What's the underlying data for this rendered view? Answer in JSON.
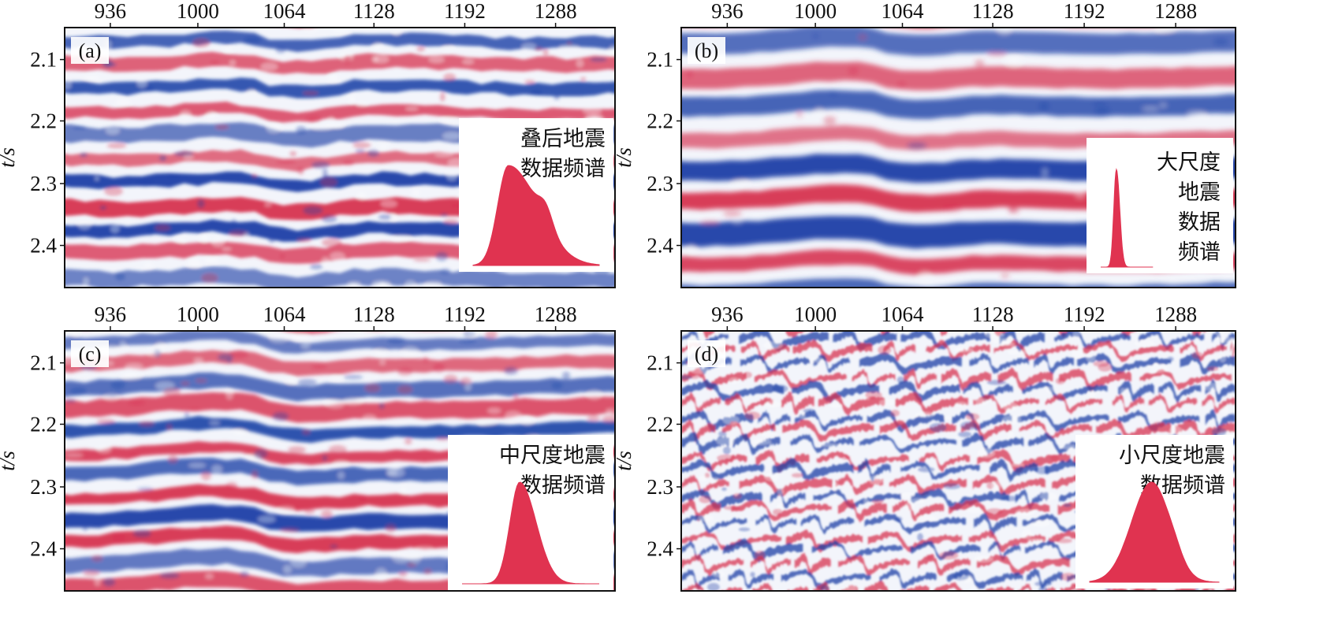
{
  "figure": {
    "x_tick_labels": [
      "936",
      "1000",
      "1064",
      "1128",
      "1192",
      "1288"
    ],
    "y_tick_labels": [
      "2.1",
      "2.2",
      "2.3",
      "2.4"
    ],
    "y_axis_title": "t/s",
    "colors": {
      "red": "#d7314f",
      "blue": "#1a3fa6",
      "white": "#ffffff",
      "spectrum": "#e03350"
    }
  },
  "panels": [
    {
      "label": "(a)",
      "inset_title_lines": [
        "叠后地震",
        "数据频谱"
      ],
      "style": "post-stack",
      "spectrum": {
        "peak_position": 0.28,
        "left_width": 0.12,
        "right_width": 0.33,
        "shoulder": 0.18
      }
    },
    {
      "label": "(b)",
      "inset_title_lines": [
        "大尺度",
        "地震",
        "数据",
        "频谱"
      ],
      "style": "large-scale",
      "spectrum": {
        "peak_position": 0.3,
        "left_width": 0.07,
        "right_width": 0.09,
        "shoulder": 0
      }
    },
    {
      "label": "(c)",
      "inset_title_lines": [
        "中尺度地震",
        "数据频谱"
      ],
      "style": "medium-scale",
      "spectrum": {
        "peak_position": 0.42,
        "left_width": 0.1,
        "right_width": 0.17,
        "shoulder": 0
      }
    },
    {
      "label": "(d)",
      "inset_title_lines": [
        "小尺度地震",
        "数据频谱"
      ],
      "style": "small-scale",
      "spectrum": {
        "peak_position": 0.48,
        "left_width": 0.22,
        "right_width": 0.2,
        "shoulder": 0.05
      }
    }
  ]
}
